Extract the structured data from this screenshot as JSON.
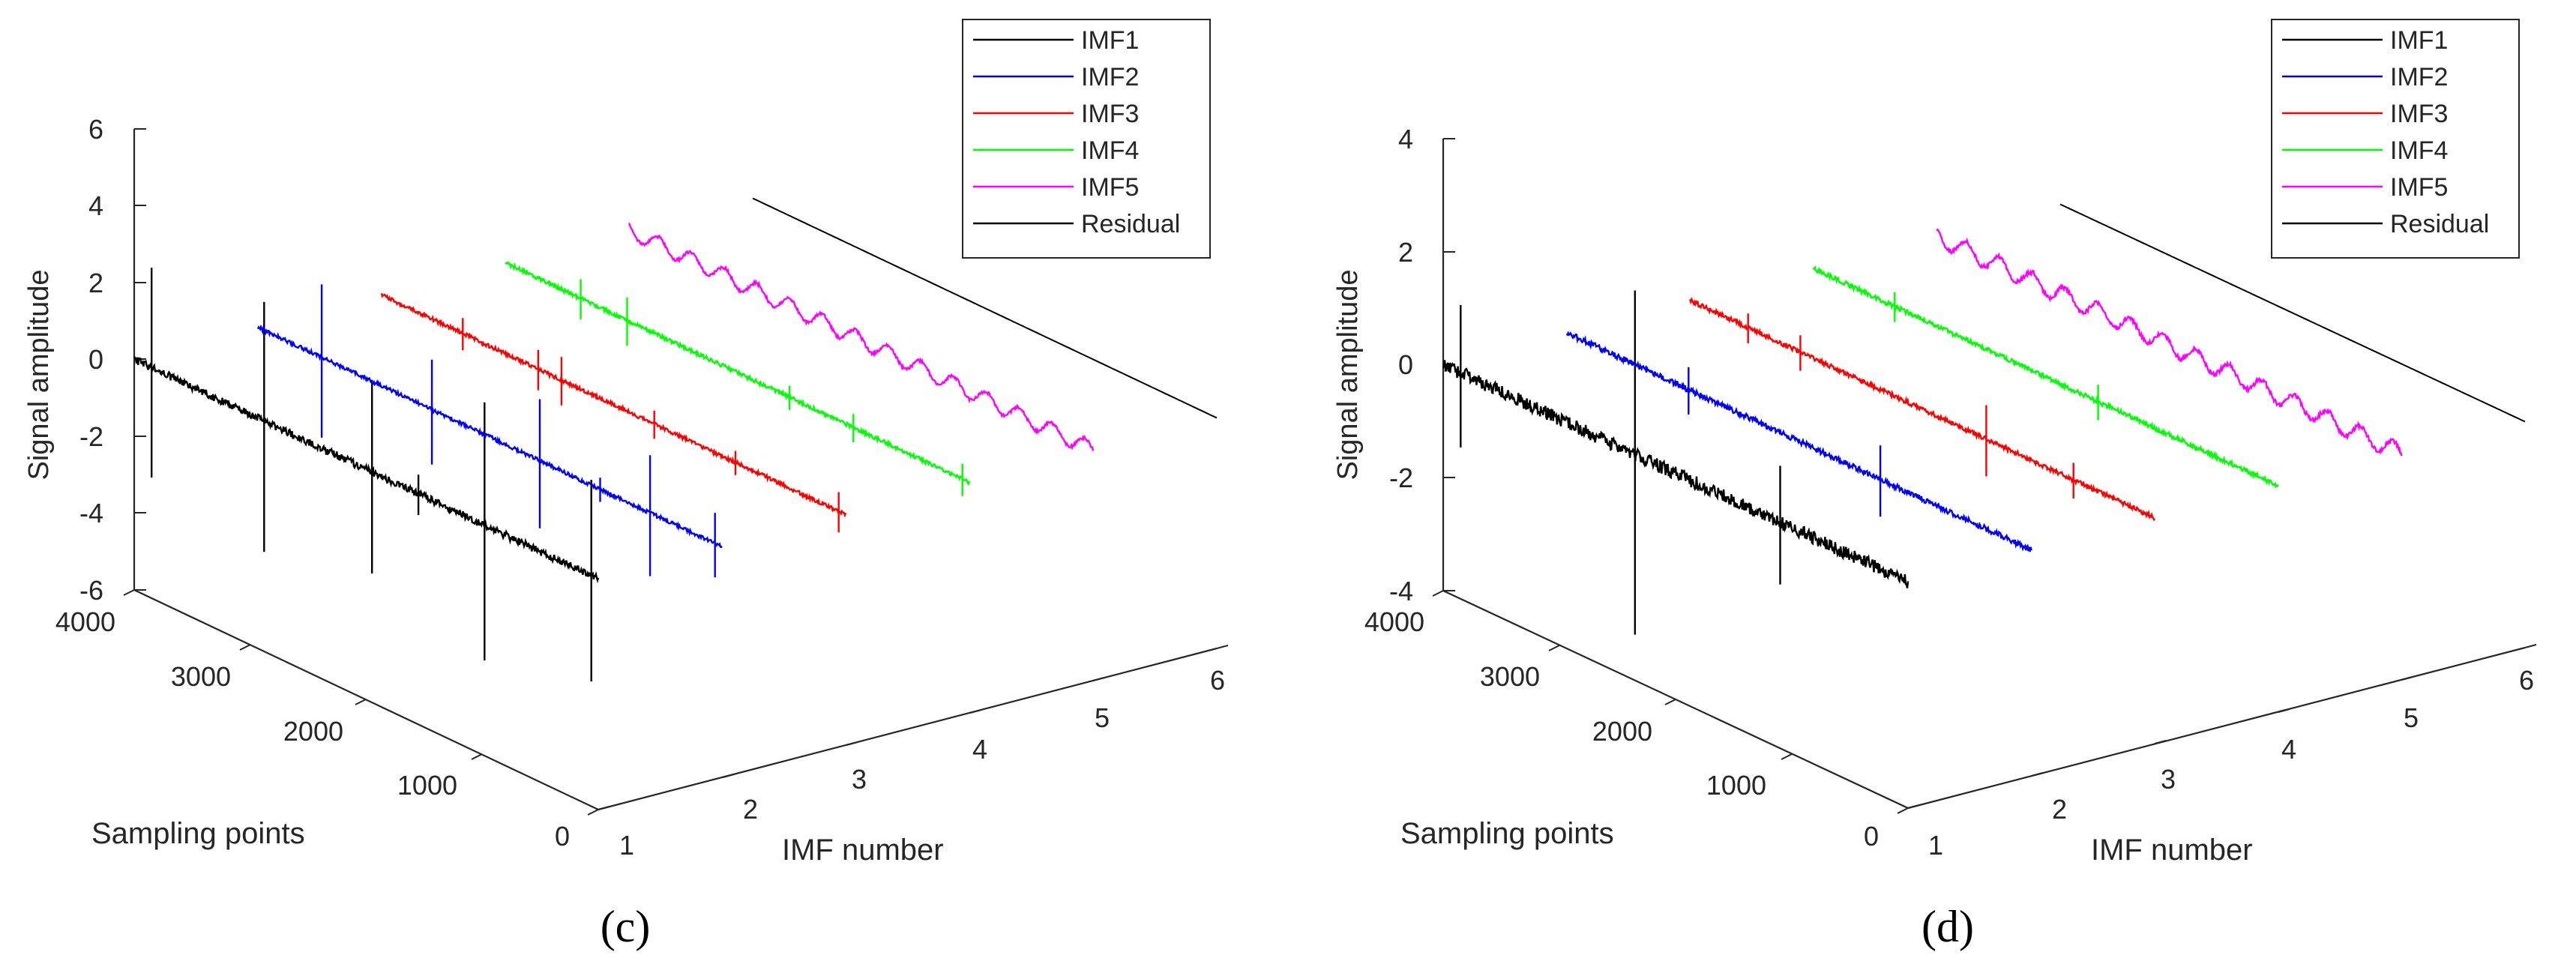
{
  "chart_data": [
    {
      "type": "line",
      "panel_label": "(c)",
      "title": "",
      "xlabel": "IMF number",
      "ylabel": "Sampling points",
      "zlabel": "Signal amplitude",
      "x_ticks": [
        "1",
        "2",
        "3",
        "4",
        "5",
        "6"
      ],
      "y_ticks": [
        "0",
        "1000",
        "2000",
        "3000",
        "4000"
      ],
      "z_ticks": [
        "-6",
        "-4",
        "-2",
        "0",
        "2",
        "4",
        "6"
      ],
      "xlim": [
        1,
        6
      ],
      "ylim": [
        0,
        4000
      ],
      "zlim": [
        -6,
        6
      ],
      "legend_position": "top-right",
      "series": [
        {
          "name": "IMF1",
          "color": "#000000",
          "imf": 1,
          "noise": 0.1,
          "spikes": [
            {
              "s": 3850,
              "a": 2.6
            },
            {
              "s": 2880,
              "a": 3.1
            },
            {
              "s": 1950,
              "a": 2.4
            },
            {
              "s": 1550,
              "a": 0.5
            },
            {
              "s": 980,
              "a": 3.2
            },
            {
              "s": 60,
              "a": 2.5
            }
          ]
        },
        {
          "name": "IMF2",
          "color": "#0000ff",
          "imf": 2,
          "noise": 0.05,
          "spikes": [
            {
              "s": 3450,
              "a": 1.9
            },
            {
              "s": 2500,
              "a": 1.3
            },
            {
              "s": 1570,
              "a": 1.6
            },
            {
              "s": 1050,
              "a": 0.3
            },
            {
              "s": 620,
              "a": 1.5
            },
            {
              "s": 60,
              "a": 0.8
            }
          ]
        },
        {
          "name": "IMF3",
          "color": "#ff0000",
          "imf": 3,
          "noise": 0.05,
          "spikes": [
            {
              "s": 3300,
              "a": 0.4
            },
            {
              "s": 2650,
              "a": 0.5
            },
            {
              "s": 2450,
              "a": 0.6
            },
            {
              "s": 1650,
              "a": 0.35
            },
            {
              "s": 950,
              "a": 0.3
            },
            {
              "s": 60,
              "a": 0.5
            }
          ]
        },
        {
          "name": "IMF4",
          "color": "#00ff00",
          "imf": 4,
          "noise": 0.05,
          "spikes": [
            {
              "s": 3350,
              "a": 0.5
            },
            {
              "s": 2950,
              "a": 0.6
            },
            {
              "s": 1550,
              "a": 0.3
            },
            {
              "s": 1000,
              "a": 0.35
            },
            {
              "s": 60,
              "a": 0.4
            }
          ]
        },
        {
          "name": "IMF5",
          "color": "#ff00ff",
          "imf": 5,
          "noise": 0.04,
          "wave": 0.2,
          "spikes": []
        },
        {
          "name": "Residual",
          "color": "#000000",
          "imf": 6,
          "noise": 0,
          "spikes": []
        }
      ]
    },
    {
      "type": "line",
      "panel_label": "(d)",
      "title": "",
      "xlabel": "IMF number",
      "ylabel": "Sampling points",
      "zlabel": "Signal amplitude",
      "x_ticks": [
        "1",
        "2",
        "3",
        "4",
        "5",
        "6"
      ],
      "y_ticks": [
        "0",
        "1000",
        "2000",
        "3000",
        "4000"
      ],
      "z_ticks": [
        "-4",
        "-2",
        "0",
        "2",
        "4"
      ],
      "xlim": [
        1,
        6
      ],
      "ylim": [
        0,
        4000
      ],
      "zlim": [
        -4,
        4
      ],
      "legend_position": "top-right",
      "series": [
        {
          "name": "IMF1",
          "color": "#000000",
          "imf": 1,
          "noise": 0.12,
          "spikes": [
            {
              "s": 3850,
              "a": 1.2
            },
            {
              "s": 2350,
              "a": 2.9
            },
            {
              "s": 1100,
              "a": 1.0
            }
          ]
        },
        {
          "name": "IMF2",
          "color": "#0000ff",
          "imf": 2,
          "noise": 0.05,
          "spikes": [
            {
              "s": 2950,
              "a": 0.4
            },
            {
              "s": 1300,
              "a": 0.6
            }
          ]
        },
        {
          "name": "IMF3",
          "color": "#ff0000",
          "imf": 3,
          "noise": 0.04,
          "spikes": [
            {
              "s": 3500,
              "a": 0.25
            },
            {
              "s": 3050,
              "a": 0.3
            },
            {
              "s": 1450,
              "a": 0.6
            },
            {
              "s": 700,
              "a": 0.3
            }
          ]
        },
        {
          "name": "IMF4",
          "color": "#00ff00",
          "imf": 4,
          "noise": 0.04,
          "spikes": [
            {
              "s": 3300,
              "a": 0.25
            },
            {
              "s": 1550,
              "a": 0.3
            }
          ]
        },
        {
          "name": "IMF5",
          "color": "#ff00ff",
          "imf": 5,
          "noise": 0.04,
          "wave": 0.15,
          "spikes": []
        },
        {
          "name": "Residual",
          "color": "#000000",
          "imf": 6,
          "noise": 0,
          "spikes": []
        }
      ]
    }
  ]
}
